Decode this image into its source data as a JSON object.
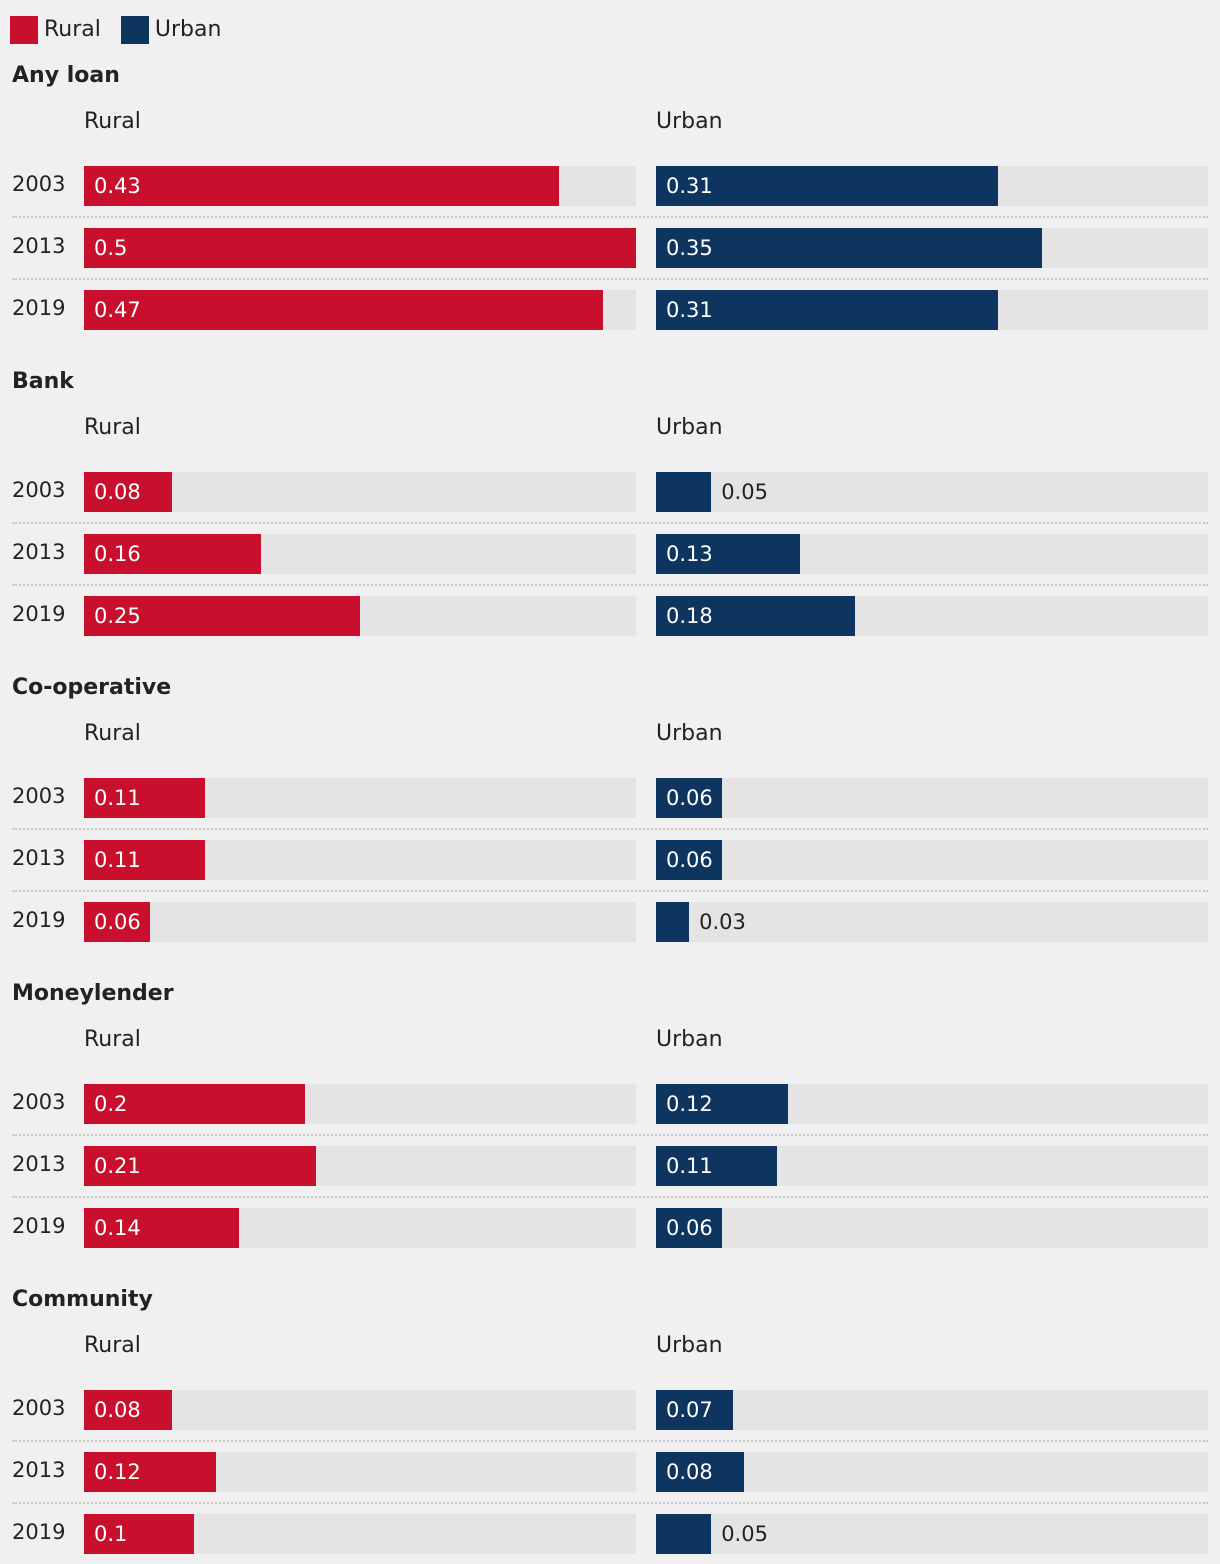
{
  "colors": {
    "rural": "#c8102e",
    "urban": "#0e3460"
  },
  "legend": [
    {
      "label": "Rural",
      "key": "rural"
    },
    {
      "label": "Urban",
      "key": "urban"
    }
  ],
  "chart_data": {
    "type": "bar",
    "orientation": "horizontal",
    "facets": [
      "Rural",
      "Urban"
    ],
    "categories": [
      "2003",
      "2013",
      "2019"
    ],
    "xlim": [
      0,
      0.5
    ],
    "panels": [
      {
        "title": "Any loan",
        "series": [
          {
            "name": "Rural",
            "key": "rural",
            "values": [
              0.43,
              0.5,
              0.47
            ]
          },
          {
            "name": "Urban",
            "key": "urban",
            "values": [
              0.31,
              0.35,
              0.31
            ]
          }
        ]
      },
      {
        "title": "Bank",
        "series": [
          {
            "name": "Rural",
            "key": "rural",
            "values": [
              0.08,
              0.16,
              0.25
            ]
          },
          {
            "name": "Urban",
            "key": "urban",
            "values": [
              0.05,
              0.13,
              0.18
            ]
          }
        ]
      },
      {
        "title": "Co-operative",
        "series": [
          {
            "name": "Rural",
            "key": "rural",
            "values": [
              0.11,
              0.11,
              0.06
            ]
          },
          {
            "name": "Urban",
            "key": "urban",
            "values": [
              0.06,
              0.06,
              0.03
            ]
          }
        ]
      },
      {
        "title": "Moneylender",
        "series": [
          {
            "name": "Rural",
            "key": "rural",
            "values": [
              0.2,
              0.21,
              0.14
            ]
          },
          {
            "name": "Urban",
            "key": "urban",
            "values": [
              0.12,
              0.11,
              0.06
            ]
          }
        ]
      },
      {
        "title": "Community",
        "series": [
          {
            "name": "Rural",
            "key": "rural",
            "values": [
              0.08,
              0.12,
              0.1
            ]
          },
          {
            "name": "Urban",
            "key": "urban",
            "values": [
              0.07,
              0.08,
              0.05
            ]
          }
        ]
      }
    ]
  }
}
